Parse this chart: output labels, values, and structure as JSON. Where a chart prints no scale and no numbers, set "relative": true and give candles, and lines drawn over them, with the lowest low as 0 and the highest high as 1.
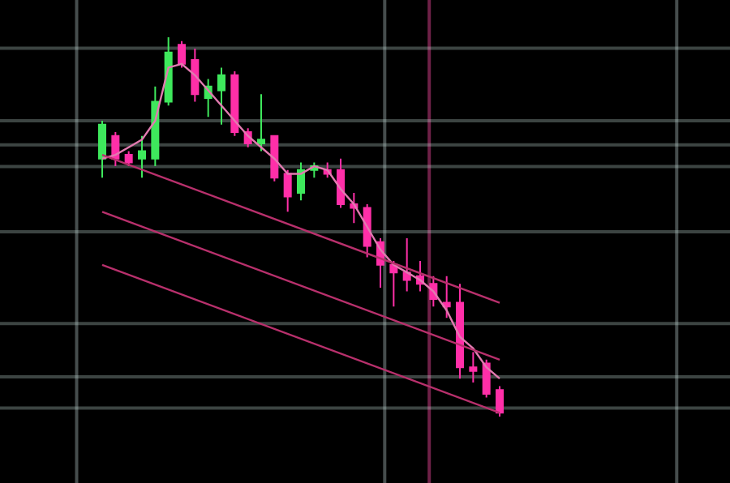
{
  "chart_data": {
    "type": "candlestick",
    "relative": true,
    "categories": [
      null,
      null,
      null,
      null,
      null,
      null,
      null,
      null,
      null,
      null,
      null,
      null,
      null,
      null,
      null,
      null,
      null,
      null,
      null,
      null,
      null,
      null,
      null,
      null,
      null,
      null,
      null,
      null,
      null,
      null,
      null
    ],
    "ohlc": [
      [
        0.68,
        0.78,
        0.63,
        0.77
      ],
      [
        0.74,
        0.75,
        0.66,
        0.68
      ],
      [
        0.69,
        0.7,
        0.66,
        0.67
      ],
      [
        0.68,
        0.74,
        0.63,
        0.7
      ],
      [
        0.68,
        0.87,
        0.66,
        0.83
      ],
      [
        0.83,
        1,
        0.82,
        0.96
      ],
      [
        0.98,
        0.99,
        0.92,
        0.93
      ],
      [
        0.94,
        0.97,
        0.83,
        0.85
      ],
      [
        0.84,
        0.89,
        0.79,
        0.87
      ],
      [
        0.86,
        0.92,
        0.77,
        0.9
      ],
      [
        0.9,
        0.91,
        0.74,
        0.75
      ],
      [
        0.75,
        0.76,
        0.71,
        0.72
      ],
      [
        0.72,
        0.85,
        0.7,
        0.73
      ],
      [
        0.74,
        0.74,
        0.62,
        0.63
      ],
      [
        0.64,
        0.65,
        0.54,
        0.58
      ],
      [
        0.59,
        0.67,
        0.57,
        0.65
      ],
      [
        0.65,
        0.67,
        0.63,
        0.66
      ],
      [
        0.65,
        0.67,
        0.63,
        0.64
      ],
      [
        0.65,
        0.68,
        0.55,
        0.56
      ],
      [
        0.56,
        0.59,
        0.51,
        0.55
      ],
      [
        0.55,
        0.56,
        0.42,
        0.45
      ],
      [
        0.46,
        0.47,
        0.34,
        0.4
      ],
      [
        0.4,
        0.41,
        0.29,
        0.38
      ],
      [
        0.38,
        0.47,
        0.33,
        0.36
      ],
      [
        0.37,
        0.41,
        0.33,
        0.35
      ],
      [
        0.35,
        0.37,
        0.29,
        0.31
      ],
      [
        0.3,
        0.37,
        0.26,
        0.29
      ],
      [
        0.3,
        0.35,
        0.1,
        0.13
      ],
      [
        0.13,
        0.17,
        0.09,
        0.12
      ],
      [
        0.14,
        0.15,
        0.05,
        0.06
      ],
      [
        0.07,
        0.08,
        0,
        0.01
      ]
    ],
    "colors": [
      "#3ee85c",
      "#ff2fa8",
      "#ff2fa8",
      "#3ee85c",
      "#3ee85c",
      "#3ee85c",
      "#ff2fa8",
      "#ff2fa8",
      "#3ee85c",
      "#3ee85c",
      "#ff2fa8",
      "#ff2fa8",
      "#3ee85c",
      "#ff2fa8",
      "#ff2fa8",
      "#3ee85c",
      "#3ee85c",
      "#ff2fa8",
      "#ff2fa8",
      "#ff2fa8",
      "#ff2fa8",
      "#ff2fa8",
      "#ff2fa8",
      "#ff2fa8",
      "#ff2fa8",
      "#ff2fa8",
      "#ff2fa8",
      "#ff2fa8",
      "#ff2fa8",
      "#ff2fa8",
      "#ff2fa8"
    ],
    "series": [
      {
        "type": "line",
        "color": "#e27ab0",
        "values": [
          0.68,
          0.69,
          0.71,
          0.73,
          0.78,
          0.92,
          0.93,
          0.9,
          0.86,
          0.82,
          0.78,
          0.74,
          0.71,
          0.68,
          0.64,
          0.64,
          0.66,
          0.65,
          0.6,
          0.56,
          0.5,
          0.44,
          0.4,
          0.38,
          0.36,
          0.33,
          0.28,
          0.21,
          0.18,
          0.13,
          0.1
        ]
      },
      {
        "type": "line",
        "color": "#b8306c",
        "values": [
          0.69,
          null,
          null,
          null,
          null,
          null,
          null,
          null,
          null,
          null,
          null,
          null,
          null,
          null,
          null,
          null,
          null,
          null,
          null,
          null,
          null,
          null,
          null,
          null,
          null,
          null,
          null,
          null,
          null,
          null,
          0.3
        ]
      },
      {
        "type": "line",
        "color": "#b8306c",
        "values": [
          0.54,
          null,
          null,
          null,
          null,
          null,
          null,
          null,
          null,
          null,
          null,
          null,
          null,
          null,
          null,
          null,
          null,
          null,
          null,
          null,
          null,
          null,
          null,
          null,
          null,
          null,
          null,
          null,
          null,
          null,
          0.15
        ]
      },
      {
        "type": "line",
        "color": "#b8306c",
        "values": [
          0.4,
          null,
          null,
          null,
          null,
          null,
          null,
          null,
          null,
          null,
          null,
          null,
          null,
          null,
          null,
          null,
          null,
          null,
          null,
          null,
          null,
          null,
          null,
          null,
          null,
          null,
          null,
          null,
          null,
          null,
          0.01
        ]
      }
    ]
  }
}
